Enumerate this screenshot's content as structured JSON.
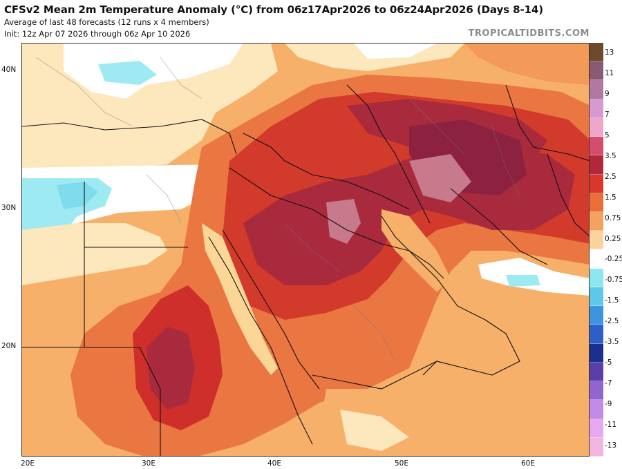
{
  "header": {
    "title": "CFSv2 Mean 2m Temperature Anomaly (°C) from 06z17Apr2026 to 06z24Apr2026 (Days 8-14)",
    "subtitle_1": "Average of last 48 forecasts (12 runs x 4 members)",
    "subtitle_2": "Init: 12z Apr 07 2026 through 06z Apr 10 2026",
    "brand": "TROPICALTIDBITS.COM"
  },
  "map": {
    "lat_labels": [
      "40N",
      "30N",
      "20N"
    ],
    "lon_labels": [
      "20E",
      "30E",
      "40E",
      "50E",
      "60E"
    ],
    "colors": {
      "ocean_warm": "#f7c27e",
      "light": "#fde7bc",
      "white": "#ffffff",
      "cyan": "#9eeaf3",
      "cyan2": "#7fdcec",
      "orange": "#f39a58",
      "orange_red": "#e5632e",
      "red": "#cf2f2a",
      "dark_red": "#a92a3c",
      "maroon": "#8c2140",
      "pink": "#b8566d",
      "pink_light": "#c77a8b",
      "border": "#111111"
    }
  },
  "colorbar": {
    "labels": [
      "13",
      "11",
      "9",
      "7",
      "5",
      "3.5",
      "2.5",
      "1.5",
      "0.75",
      "0.25",
      "-0.25",
      "-0.75",
      "-1.5",
      "-2.5",
      "-3.5",
      "-5",
      "-7",
      "-9",
      "-11",
      "-13"
    ],
    "colors": [
      "#6b4a2e",
      "#8a5a74",
      "#b07aa0",
      "#d79ad0",
      "#f0a6c8",
      "#d44d6f",
      "#b2283b",
      "#d7372c",
      "#ec6d3a",
      "#f5a260",
      "#fad49c",
      "#ffffff",
      "#8ee7ef",
      "#5fc7ea",
      "#3f94e0",
      "#2c5fc8",
      "#1b2f8f",
      "#5a3fa8",
      "#9065d0",
      "#c08ce8",
      "#e6a8ee",
      "#f0b6de"
    ]
  }
}
